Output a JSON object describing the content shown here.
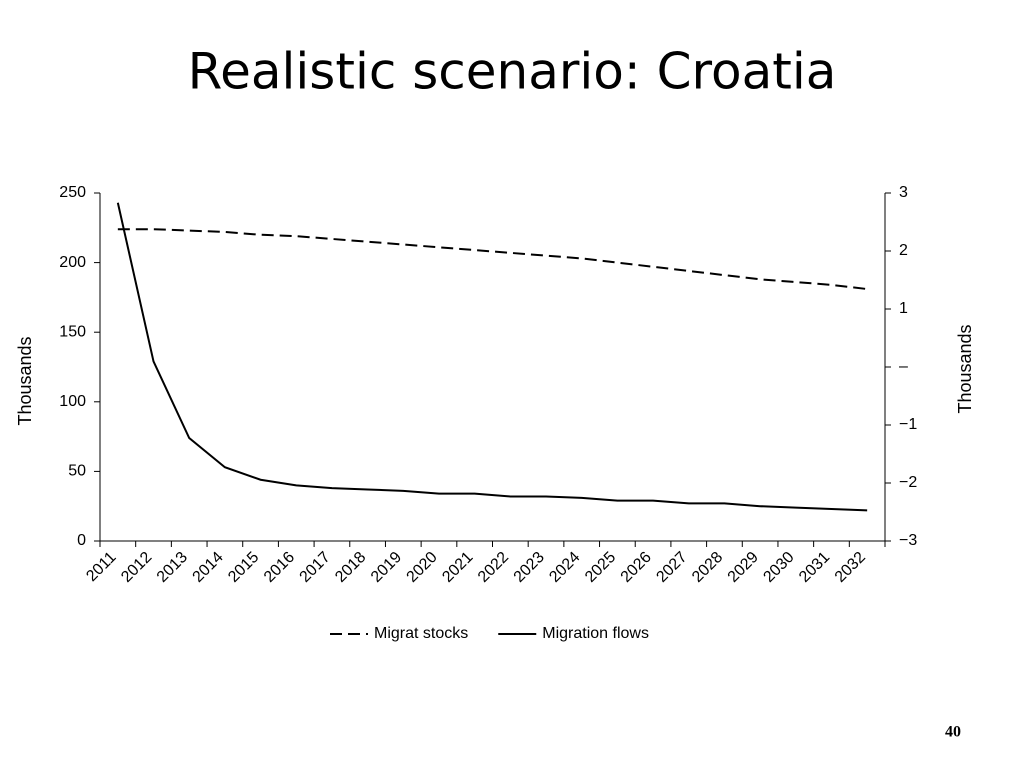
{
  "title": "Realistic scenario: Croatia",
  "page_number": "40",
  "chart_data": {
    "type": "line",
    "categories": [
      "2011",
      "2012",
      "2013",
      "2014",
      "2015",
      "2016",
      "2017",
      "2018",
      "2019",
      "2020",
      "2021",
      "2022",
      "2023",
      "2024",
      "2025",
      "2026",
      "2027",
      "2028",
      "2029",
      "2030",
      "2031",
      "2032"
    ],
    "series": [
      {
        "name": "Migrat stocks",
        "color": "#000000",
        "line_style": "dashed",
        "values": [
          224,
          224,
          223,
          222,
          220,
          219,
          217,
          215,
          213,
          211,
          209,
          207,
          205,
          203,
          200,
          197,
          194,
          191,
          188,
          186,
          184,
          181
        ]
      },
      {
        "name": "Migration flows",
        "color": "#000000",
        "line_style": "solid",
        "values": [
          243,
          129,
          74,
          53,
          44,
          40,
          38,
          37,
          36,
          34,
          34,
          32,
          32,
          31,
          29,
          29,
          27,
          27,
          25,
          24,
          23,
          22
        ]
      }
    ],
    "ylim": [
      0,
      250
    ],
    "yticks": [
      0,
      50,
      100,
      150,
      200,
      250
    ],
    "y_label": "Thousands",
    "y2lim": [
      -3,
      3
    ],
    "y2ticks": [
      {
        "value": -3,
        "label": "−3"
      },
      {
        "value": -2,
        "label": "−2"
      },
      {
        "value": -1,
        "label": "−1"
      },
      {
        "value": 0,
        "label": "–"
      },
      1,
      2,
      3
    ],
    "y2_label": "Thousands",
    "legend": "bottom"
  }
}
